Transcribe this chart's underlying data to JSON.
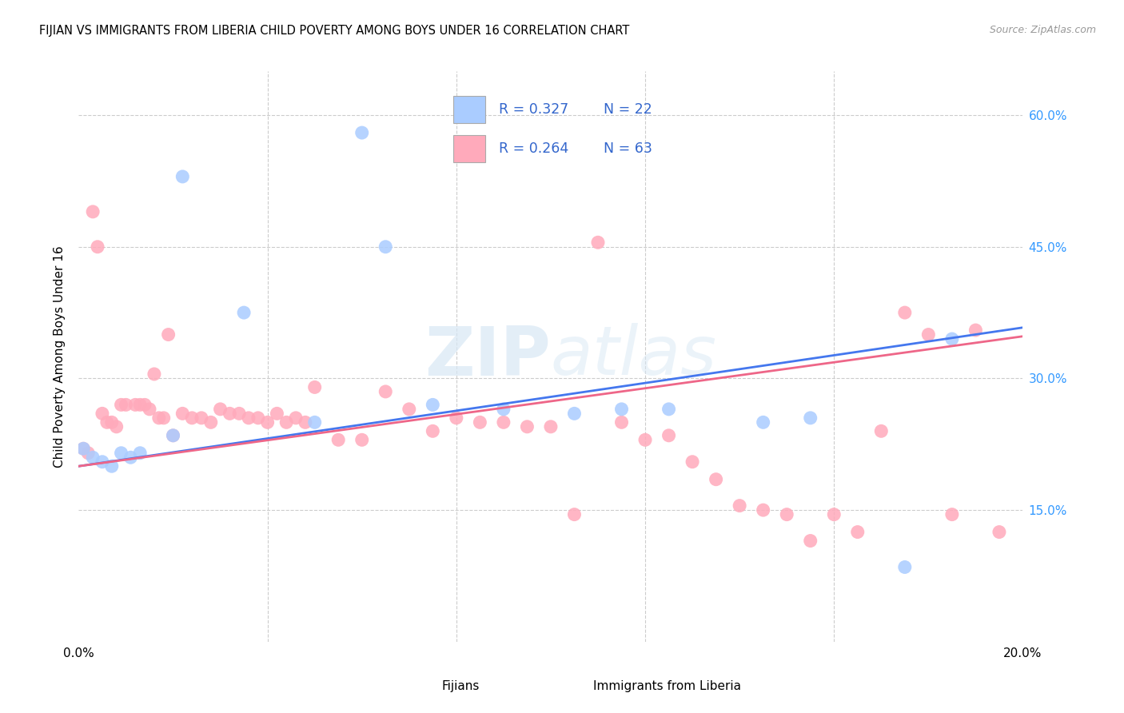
{
  "title": "FIJIAN VS IMMIGRANTS FROM LIBERIA CHILD POVERTY AMONG BOYS UNDER 16 CORRELATION CHART",
  "source": "Source: ZipAtlas.com",
  "ylabel": "Child Poverty Among Boys Under 16",
  "xmin": 0.0,
  "xmax": 0.2,
  "ymin": 0.0,
  "ymax": 0.65,
  "background_color": "#ffffff",
  "fijian_color": "#aaccff",
  "liberia_color": "#ffaabb",
  "trend_fijian_color": "#4477ee",
  "trend_liberia_color": "#ee6688",
  "fijian_R": "0.327",
  "fijian_N": "22",
  "liberia_R": "0.264",
  "liberia_N": "63",
  "grid_color": "#cccccc",
  "rtext_color": "#3366cc",
  "yright_color": "#3399ff",
  "fijian_x": [
    0.001,
    0.003,
    0.005,
    0.007,
    0.009,
    0.011,
    0.013,
    0.02,
    0.022,
    0.035,
    0.05,
    0.06,
    0.065,
    0.075,
    0.09,
    0.105,
    0.115,
    0.125,
    0.145,
    0.155,
    0.175,
    0.185
  ],
  "fijian_y": [
    0.22,
    0.21,
    0.205,
    0.2,
    0.215,
    0.21,
    0.215,
    0.235,
    0.53,
    0.375,
    0.25,
    0.58,
    0.45,
    0.27,
    0.265,
    0.26,
    0.265,
    0.265,
    0.25,
    0.255,
    0.085,
    0.345
  ],
  "liberia_x": [
    0.001,
    0.002,
    0.003,
    0.004,
    0.005,
    0.006,
    0.007,
    0.008,
    0.009,
    0.01,
    0.012,
    0.013,
    0.014,
    0.015,
    0.016,
    0.017,
    0.018,
    0.019,
    0.02,
    0.022,
    0.024,
    0.026,
    0.028,
    0.03,
    0.032,
    0.034,
    0.036,
    0.038,
    0.04,
    0.042,
    0.044,
    0.046,
    0.048,
    0.05,
    0.055,
    0.06,
    0.065,
    0.07,
    0.075,
    0.08,
    0.085,
    0.09,
    0.095,
    0.1,
    0.105,
    0.11,
    0.115,
    0.12,
    0.125,
    0.13,
    0.135,
    0.14,
    0.145,
    0.15,
    0.155,
    0.16,
    0.165,
    0.17,
    0.175,
    0.18,
    0.185,
    0.19,
    0.195
  ],
  "liberia_y": [
    0.22,
    0.215,
    0.49,
    0.45,
    0.26,
    0.25,
    0.25,
    0.245,
    0.27,
    0.27,
    0.27,
    0.27,
    0.27,
    0.265,
    0.305,
    0.255,
    0.255,
    0.35,
    0.235,
    0.26,
    0.255,
    0.255,
    0.25,
    0.265,
    0.26,
    0.26,
    0.255,
    0.255,
    0.25,
    0.26,
    0.25,
    0.255,
    0.25,
    0.29,
    0.23,
    0.23,
    0.285,
    0.265,
    0.24,
    0.255,
    0.25,
    0.25,
    0.245,
    0.245,
    0.145,
    0.455,
    0.25,
    0.23,
    0.235,
    0.205,
    0.185,
    0.155,
    0.15,
    0.145,
    0.115,
    0.145,
    0.125,
    0.24,
    0.375,
    0.35,
    0.145,
    0.355,
    0.125
  ]
}
